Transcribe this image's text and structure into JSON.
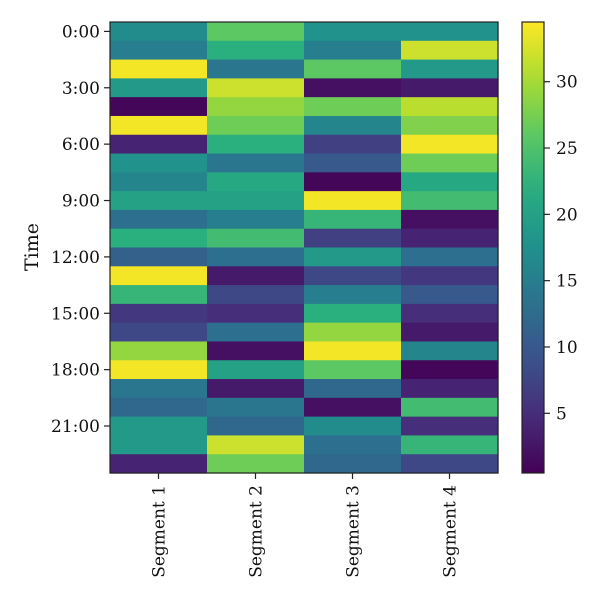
{
  "chart_data": {
    "type": "heatmap",
    "ylabel": "Time",
    "xlabel": "",
    "columns": [
      "Segment 1",
      "Segment 2",
      "Segment 3",
      "Segment 4"
    ],
    "y_tick_labels": [
      "0:00",
      "3:00",
      "6:00",
      "9:00",
      "12:00",
      "15:00",
      "18:00",
      "21:00"
    ],
    "y_tick_rows": [
      0,
      3,
      6,
      9,
      12,
      15,
      18,
      21
    ],
    "rows": 24,
    "colormap": "viridis",
    "color_range": [
      0.5,
      34.5
    ],
    "colorbar_ticks": [
      5,
      10,
      15,
      20,
      25,
      30
    ],
    "values": [
      [
        17,
        26,
        18,
        18
      ],
      [
        15,
        22,
        15,
        32
      ],
      [
        34,
        14,
        26,
        19
      ],
      [
        19,
        32,
        2,
        3
      ],
      [
        1,
        29,
        27,
        31
      ],
      [
        34,
        27,
        16,
        28
      ],
      [
        4,
        22,
        7,
        34
      ],
      [
        18,
        14,
        10,
        27
      ],
      [
        16,
        21,
        1,
        21
      ],
      [
        20,
        20,
        34,
        24
      ],
      [
        13,
        15,
        23,
        2
      ],
      [
        22,
        24,
        7,
        4
      ],
      [
        11,
        13,
        19,
        13
      ],
      [
        34,
        3,
        8,
        6
      ],
      [
        23,
        8,
        15,
        10
      ],
      [
        6,
        5,
        22,
        5
      ],
      [
        8,
        13,
        29,
        3
      ],
      [
        29,
        2,
        34,
        16
      ],
      [
        34,
        20,
        26,
        1
      ],
      [
        14,
        3,
        12,
        4
      ],
      [
        12,
        14,
        2,
        24
      ],
      [
        19,
        12,
        17,
        5
      ],
      [
        19,
        32,
        13,
        23
      ],
      [
        4,
        27,
        12,
        8
      ]
    ]
  }
}
